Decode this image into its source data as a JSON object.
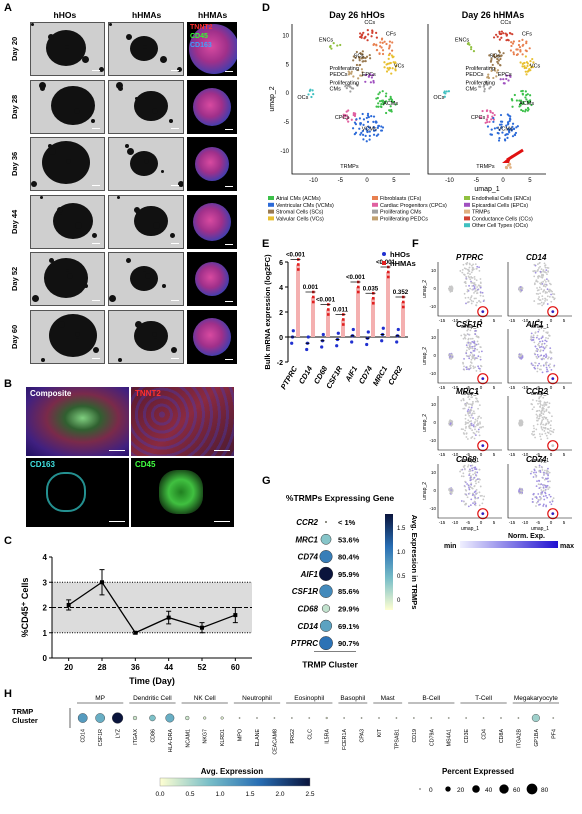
{
  "panels": {
    "A": "A",
    "B": "B",
    "C": "C",
    "D": "D",
    "E": "E",
    "F": "F",
    "G": "G",
    "H": "H"
  },
  "panelA": {
    "col_headers": [
      "hHOs",
      "hHMAs",
      "hHMAs"
    ],
    "rows": [
      "Day 20",
      "Day 28",
      "Day 36",
      "Day 44",
      "Day 52",
      "Day 60"
    ],
    "markers": [
      {
        "label": "TNNT2",
        "color": "#ff3030"
      },
      {
        "label": "CD45",
        "color": "#30ff30"
      },
      {
        "label": "CD163",
        "color": "#40a0ff"
      }
    ]
  },
  "panelB": {
    "tiles": [
      {
        "label": "Composite",
        "color": "#ffffff"
      },
      {
        "label": "TNNT2",
        "color": "#ff3030"
      },
      {
        "label": "CD163",
        "color": "#40e0e0"
      },
      {
        "label": "CD45",
        "color": "#40ff40"
      }
    ]
  },
  "panelC": {
    "chart_data": {
      "type": "line",
      "x": [
        20,
        28,
        36,
        44,
        52,
        60
      ],
      "y": [
        2.1,
        3.0,
        1.0,
        1.6,
        1.2,
        1.7
      ],
      "err": [
        0.2,
        0.5,
        0.05,
        0.25,
        0.2,
        0.3
      ],
      "xlabel": "Time (Day)",
      "ylabel": "%CD45⁺ Cells",
      "ylim": [
        0,
        4
      ],
      "yticks": [
        "0",
        "1",
        "2",
        "3",
        "4"
      ],
      "xticks": [
        "20",
        "28",
        "36",
        "44",
        "52",
        "60"
      ],
      "band": [
        1,
        3
      ],
      "mean_line": 2
    }
  },
  "panelD": {
    "titles": [
      "Day 26 hHOs",
      "Day 26 hHMAs"
    ],
    "xlabel": "umap_1",
    "ylabel": "umap_2",
    "xticks": [
      "-10",
      "-5",
      "0",
      "5"
    ],
    "yticks": [
      "10",
      "5",
      "0",
      "-5",
      "-10"
    ],
    "cluster_labels": [
      "ENCs",
      "CCs",
      "CFs",
      "SCs",
      "Proliferating PEDCs",
      "VCs",
      "Proliferating CMs",
      "EPCs",
      "OCs",
      "ACMs",
      "CPCs",
      "VCMs",
      "TRMPs"
    ],
    "legend": [
      {
        "label": "Atrial CMs (ACMs)",
        "color": "#3cc04a"
      },
      {
        "label": "Ventricular CMs (VCMs)",
        "color": "#2c6ad8"
      },
      {
        "label": "Stromal Cells (SCs)",
        "color": "#9a7a50"
      },
      {
        "label": "Valvular Cells (VCs)",
        "color": "#e8c030"
      },
      {
        "label": "Fibroblasts (CFs)",
        "color": "#e88050"
      },
      {
        "label": "Cardiac Progenitors (CPCs)",
        "color": "#e060a0"
      },
      {
        "label": "Proliferating CMs",
        "color": "#a0a0a0"
      },
      {
        "label": "Proliferating PEDCs",
        "color": "#c0a070"
      },
      {
        "label": "Endothelial Cells (ENCs)",
        "color": "#90c040"
      },
      {
        "label": "Epicardial Cells (EPCs)",
        "color": "#a050c0"
      },
      {
        "label": "TRMPs",
        "color": "#e0b080"
      },
      {
        "label": "Conductance Cells (CCs)",
        "color": "#d04030"
      },
      {
        "label": "Other Cell Types (OCs)",
        "color": "#40c0c0"
      }
    ]
  },
  "panelE": {
    "chart_data": {
      "type": "scatter",
      "categories": [
        "PTPRC",
        "CD14",
        "CD68",
        "CSF1R",
        "AIF1",
        "CD74",
        "MRC1",
        "CCR2"
      ],
      "series": [
        {
          "name": "hHOs",
          "color": "#2030d0",
          "values": [
            0.0,
            -0.5,
            -0.3,
            -0.2,
            0.1,
            -0.1,
            0.2,
            0.1
          ]
        },
        {
          "name": "hHMAs",
          "color": "#e02020",
          "values": [
            5.8,
            3.2,
            2.2,
            1.4,
            4.0,
            3.1,
            5.2,
            2.8
          ]
        }
      ],
      "pvalues": [
        "<0.001",
        "0.001",
        "<0.001",
        "0.011",
        "<0.001",
        "0.035",
        "<0.001",
        "0.352"
      ],
      "ylabel": "Bulk mRNA expression (log2FC)",
      "ylim": [
        -2,
        6
      ],
      "yticks": [
        "-2",
        "0",
        "2",
        "4",
        "6"
      ]
    }
  },
  "panelF": {
    "genes": [
      "PTPRC",
      "CD14",
      "CSF1R",
      "AIF1",
      "MRC1",
      "CCR2",
      "CD68",
      "CD74"
    ],
    "xlabel": "umap_1",
    "ylabel": "umap_2",
    "xticks": [
      "-15",
      "-10",
      "-5",
      "0",
      "5"
    ],
    "yticks": [
      "10",
      "0",
      "-10"
    ],
    "legend_title": "Norm. Exp.",
    "legend_min": "min",
    "legend_max": "max"
  },
  "panelG": {
    "title": "%TRMPs Expressing Gene",
    "xlabel": "TRMP Cluster",
    "colorbar_label": "Avg. Expression in TRMPs",
    "colorbar_ticks": [
      "1.5",
      "1.0",
      "0.5",
      "0"
    ],
    "chart_data": {
      "type": "scatter",
      "genes": [
        "CCR2",
        "MRC1",
        "CD74",
        "AIF1",
        "CSF1R",
        "CD68",
        "CD14",
        "PTPRC"
      ],
      "percent_text": [
        "< 1%",
        "53.6%",
        "80.4%",
        "95.9%",
        "85.6%",
        "29.9%",
        "69.1%",
        "90.7%"
      ],
      "percent": [
        1,
        53.6,
        80.4,
        95.9,
        85.6,
        29.9,
        69.1,
        90.7
      ],
      "avg_expression": [
        0.0,
        0.6,
        1.2,
        2.0,
        1.1,
        0.3,
        0.9,
        1.3
      ]
    }
  },
  "panelH": {
    "row_label": "TRMP Cluster",
    "groups": [
      {
        "name": "MP",
        "genes": [
          "CD14",
          "CSF1R",
          "LYZ"
        ]
      },
      {
        "name": "Dendritic Cell",
        "genes": [
          "ITGAX",
          "CD86",
          "HLA-DRA"
        ]
      },
      {
        "name": "NK Cell",
        "genes": [
          "NCAM1",
          "NKG7",
          "KLRD1"
        ]
      },
      {
        "name": "Neutrophil",
        "genes": [
          "MPO",
          "ELANE",
          "CEACAM8"
        ]
      },
      {
        "name": "Eosinophil",
        "genes": [
          "PRG2",
          "CLC",
          "IL5RA"
        ]
      },
      {
        "name": "Basophil",
        "genes": [
          "FCER1A",
          "CPA3"
        ]
      },
      {
        "name": "Mast",
        "genes": [
          "KIT",
          "TPSAB1"
        ]
      },
      {
        "name": "B-Cell",
        "genes": [
          "CD19",
          "CD79A",
          "MS4A1"
        ]
      },
      {
        "name": "T-Cell",
        "genes": [
          "CD3E",
          "CD4",
          "CD8A"
        ]
      },
      {
        "name": "Megakaryocyte",
        "genes": [
          "ITGA2B",
          "GP1BA",
          "PF4"
        ]
      }
    ],
    "chart_data": {
      "type": "scatter",
      "avg": [
        1.2,
        1.0,
        2.5,
        0.3,
        0.8,
        1.0,
        0.3,
        0.2,
        0.2,
        0.1,
        0.1,
        0.1,
        0.1,
        0.1,
        0.1,
        0.1,
        0.1,
        0.1,
        0.1,
        0.1,
        0.1,
        0.1,
        0.1,
        0.1,
        0.1,
        0.1,
        0.6,
        0.1,
        0.3,
        0.1,
        0.1
      ],
      "pct": [
        60,
        60,
        80,
        10,
        25,
        50,
        10,
        5,
        5,
        1,
        1,
        1,
        1,
        1,
        2,
        1,
        1,
        1,
        1,
        1,
        1,
        1,
        1,
        1,
        1,
        1,
        40,
        1,
        10,
        1,
        1
      ]
    },
    "avg_legend": {
      "title": "Avg. Expression",
      "ticks": [
        "0.0",
        "0.5",
        "1.0",
        "1.5",
        "2.0",
        "2.5"
      ]
    },
    "pct_legend": {
      "title": "Percent Expressed",
      "ticks": [
        "0",
        "20",
        "40",
        "60",
        "80"
      ]
    }
  }
}
